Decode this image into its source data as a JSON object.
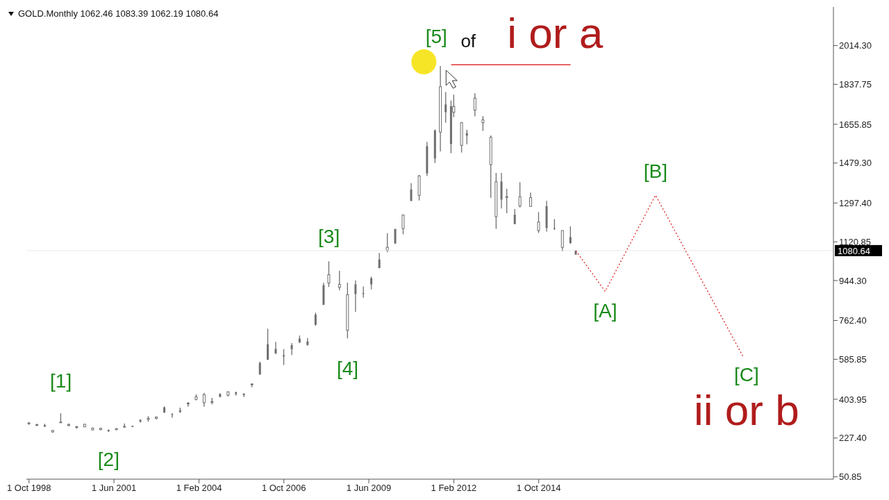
{
  "chart_data": {
    "type": "candlestick",
    "title": "GOLD.Monthly 1062.46 1083.39 1062.19 1080.64",
    "x": [
      "1998-10",
      "1999-01",
      "1999-04",
      "1999-07",
      "1999-10",
      "2000-01",
      "2000-04",
      "2000-07",
      "2000-10",
      "2001-01",
      "2001-04",
      "2001-07",
      "2001-10",
      "2002-01",
      "2002-04",
      "2002-07",
      "2002-10",
      "2003-01",
      "2003-04",
      "2003-07",
      "2003-10",
      "2004-01",
      "2004-04",
      "2004-07",
      "2004-10",
      "2005-01",
      "2005-04",
      "2005-07",
      "2005-10",
      "2006-01",
      "2006-04",
      "2006-07",
      "2006-10",
      "2007-01",
      "2007-04",
      "2007-07",
      "2007-10",
      "2008-01",
      "2008-03",
      "2008-07",
      "2008-10",
      "2009-01",
      "2009-04",
      "2009-07",
      "2009-10",
      "2010-01",
      "2010-04",
      "2010-07",
      "2010-10",
      "2011-01",
      "2011-04",
      "2011-07",
      "2011-09",
      "2011-11",
      "2012-01",
      "2012-02",
      "2012-05",
      "2012-07",
      "2012-10",
      "2013-01",
      "2013-04",
      "2013-06",
      "2013-08",
      "2013-10",
      "2014-01",
      "2014-03",
      "2014-07",
      "2014-10",
      "2015-01",
      "2015-04",
      "2015-07",
      "2015-10",
      "2015-12"
    ],
    "ohlc": [
      [
        296,
        300,
        288,
        292
      ],
      [
        288,
        292,
        283,
        287
      ],
      [
        279,
        292,
        278,
        286
      ],
      [
        262,
        263,
        252,
        255
      ],
      [
        300,
        340,
        296,
        299
      ],
      [
        289,
        294,
        281,
        284
      ],
      [
        279,
        282,
        270,
        275
      ],
      [
        290,
        291,
        277,
        278
      ],
      [
        272,
        276,
        264,
        264
      ],
      [
        272,
        273,
        262,
        266
      ],
      [
        258,
        266,
        255,
        264
      ],
      [
        270,
        272,
        264,
        265
      ],
      [
        280,
        294,
        276,
        279
      ],
      [
        278,
        284,
        277,
        282
      ],
      [
        302,
        313,
        298,
        310
      ],
      [
        317,
        327,
        302,
        312
      ],
      [
        323,
        325,
        312,
        317
      ],
      [
        343,
        371,
        342,
        367
      ],
      [
        334,
        340,
        320,
        336
      ],
      [
        346,
        366,
        342,
        354
      ],
      [
        386,
        391,
        370,
        384
      ],
      [
        415,
        426,
        399,
        403
      ],
      [
        425,
        433,
        370,
        388
      ],
      [
        393,
        410,
        381,
        391
      ],
      [
        415,
        431,
        412,
        428
      ],
      [
        438,
        438,
        417,
        422
      ],
      [
        428,
        438,
        420,
        435
      ],
      [
        423,
        431,
        414,
        429
      ],
      [
        473,
        476,
        459,
        470
      ],
      [
        517,
        575,
        515,
        569
      ],
      [
        584,
        725,
        583,
        654
      ],
      [
        613,
        665,
        609,
        633
      ],
      [
        599,
        632,
        560,
        604
      ],
      [
        632,
        660,
        605,
        650
      ],
      [
        663,
        694,
        660,
        680
      ],
      [
        651,
        683,
        648,
        667
      ],
      [
        743,
        798,
        739,
        789
      ],
      [
        834,
        934,
        833,
        923
      ],
      [
        971,
        1032,
        915,
        933
      ],
      [
        927,
        989,
        900,
        913
      ],
      [
        880,
        935,
        681,
        718
      ],
      [
        883,
        945,
        802,
        927
      ],
      [
        885,
        917,
        866,
        887
      ],
      [
        927,
        962,
        904,
        955
      ],
      [
        1001,
        1070,
        1000,
        1040
      ],
      [
        1096,
        1160,
        1073,
        1081
      ],
      [
        1113,
        1180,
        1112,
        1179
      ],
      [
        1243,
        1245,
        1155,
        1181
      ],
      [
        1308,
        1388,
        1305,
        1359
      ],
      [
        1421,
        1425,
        1309,
        1332
      ],
      [
        1432,
        1576,
        1420,
        1556
      ],
      [
        1500,
        1632,
        1479,
        1628
      ],
      [
        1827,
        1921,
        1532,
        1620
      ],
      [
        1711,
        1803,
        1663,
        1746
      ],
      [
        1566,
        1764,
        1524,
        1738
      ],
      [
        1737,
        1791,
        1688,
        1710
      ],
      [
        1663,
        1666,
        1527,
        1560
      ],
      [
        1604,
        1631,
        1565,
        1615
      ],
      [
        1775,
        1797,
        1692,
        1720
      ],
      [
        1676,
        1693,
        1626,
        1663
      ],
      [
        1597,
        1605,
        1321,
        1472
      ],
      [
        1394,
        1434,
        1180,
        1235
      ],
      [
        1313,
        1434,
        1272,
        1395
      ],
      [
        1326,
        1362,
        1251,
        1323
      ],
      [
        1202,
        1270,
        1200,
        1244
      ],
      [
        1326,
        1392,
        1277,
        1284
      ],
      [
        1322,
        1345,
        1281,
        1282
      ],
      [
        1211,
        1256,
        1161,
        1172
      ],
      [
        1184,
        1307,
        1167,
        1283
      ],
      [
        1183,
        1224,
        1175,
        1183
      ],
      [
        1172,
        1172,
        1077,
        1095
      ],
      [
        1115,
        1191,
        1111,
        1142
      ],
      [
        1062.46,
        1083.39,
        1062.19,
        1080.64
      ]
    ],
    "color": "#6e6e6e",
    "series": [
      {
        "type": "line",
        "line_style": "dotted",
        "color": "#e03030",
        "x": [
          "2015-12",
          "2016-11",
          "2018-06",
          "2021-03"
        ],
        "values": [
          1080,
          895,
          1333,
          598
        ]
      },
      {
        "type": "line",
        "line_style": "solid",
        "color": "#e03030",
        "x": [
          "2012-01",
          "2015-10"
        ],
        "values": [
          1927,
          1927
        ]
      }
    ],
    "xlim": [
      "1998-09",
      "2024-01"
    ],
    "xticks": [
      {
        "value": "1998-10",
        "label": "1 Oct 1998"
      },
      {
        "value": "2001-06",
        "label": "1 Jun 2001"
      },
      {
        "value": "2004-02",
        "label": "1 Feb 2004"
      },
      {
        "value": "2006-10",
        "label": "1 Oct 2006"
      },
      {
        "value": "2009-06",
        "label": "1 Jun 2009"
      },
      {
        "value": "2012-02",
        "label": "1 Feb 2012"
      },
      {
        "value": "2014-10",
        "label": "1 Oct 2014"
      }
    ],
    "ylim": [
      40,
      2190
    ],
    "yticks": [
      {
        "value": 50.85,
        "label": "50.85"
      },
      {
        "value": 227.4,
        "label": "227.40"
      },
      {
        "value": 403.95,
        "label": "403.95"
      },
      {
        "value": 585.85,
        "label": "585.85"
      },
      {
        "value": 762.4,
        "label": "762.40"
      },
      {
        "value": 944.3,
        "label": "944.30"
      },
      {
        "value": 1120.85,
        "label": "1120.85"
      },
      {
        "value": 1297.4,
        "label": "1297.40"
      },
      {
        "value": 1479.3,
        "label": "1479.30"
      },
      {
        "value": 1655.85,
        "label": "1655.85"
      },
      {
        "value": 1837.75,
        "label": "1837.75"
      },
      {
        "value": 2014.3,
        "label": "2014.30"
      }
    ],
    "ref_lines": [
      {
        "axis": "y",
        "value": 1080.64,
        "label": "1080.64",
        "color": "#e8e8e8"
      }
    ],
    "grid": false,
    "annotations": [
      {
        "text": "[1]",
        "x": "1999-10",
        "y": 340
      },
      {
        "text": "[2]",
        "x": "2001-04",
        "y": 255
      },
      {
        "text": "[3]",
        "x": "2008-03",
        "y": 1032
      },
      {
        "text": "[4]",
        "x": "2008-10",
        "y": 681
      },
      {
        "text": "[5]",
        "x": "2011-09",
        "y": 1921
      },
      "of",
      "i or a",
      {
        "text": "[A]",
        "x": "2016-11",
        "y": 895
      },
      {
        "text": "[B]",
        "x": "2018-06",
        "y": 1333
      },
      {
        "text": "[C]",
        "x": "2021-03",
        "y": 598
      },
      "ii or b"
    ]
  }
}
